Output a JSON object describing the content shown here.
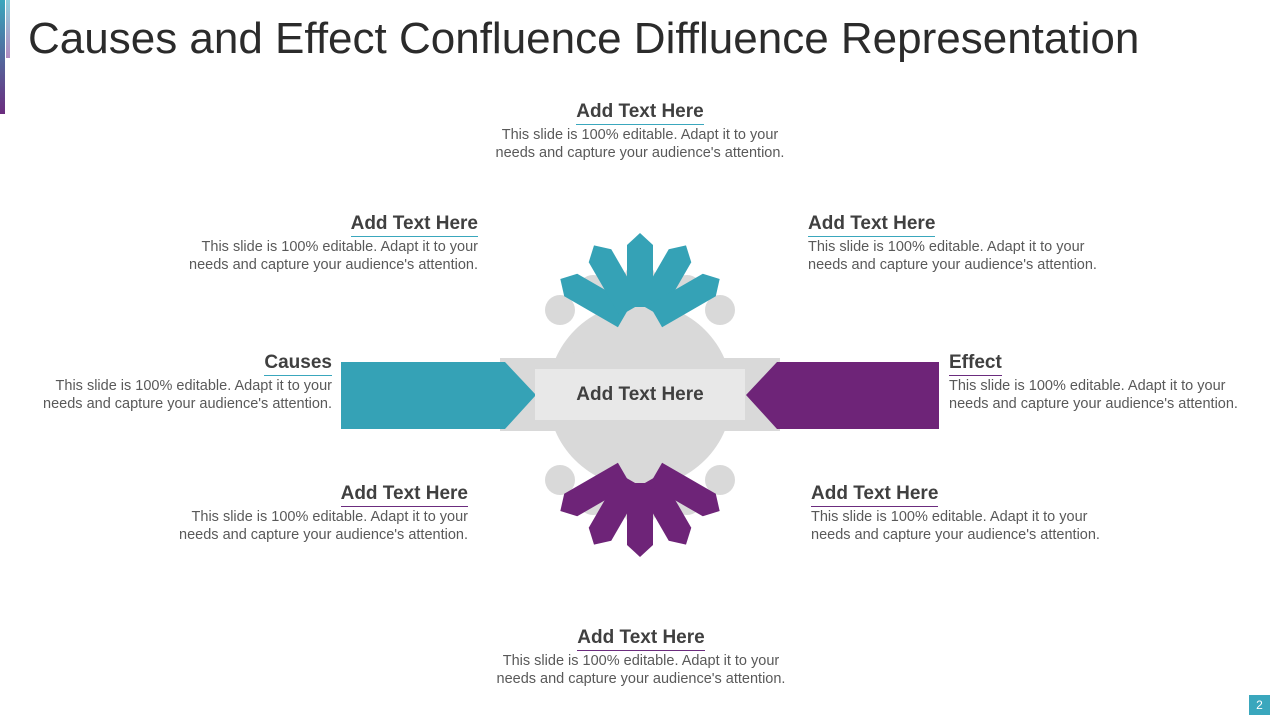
{
  "title": "Causes and Effect Confluence Diffluence Representation",
  "center_label": "Add Text Here",
  "page_number": "2",
  "colors": {
    "teal": "#3aa7bd",
    "purple": "#6b2c7e",
    "hub": "#d9d9d9",
    "center_box": "#e8e8e8"
  },
  "blocks": {
    "top": {
      "heading": "Add Text Here",
      "line1": "This slide is 100% editable. Adapt it to your",
      "line2": "needs and capture your audience's attention."
    },
    "upper_left": {
      "heading": "Add Text Here",
      "line1": "This slide is 100% editable. Adapt it to your",
      "line2": "needs and capture your audience's attention."
    },
    "upper_right": {
      "heading": "Add Text Here",
      "line1": "This slide is 100% editable. Adapt it to your",
      "line2": "needs and capture your audience's attention."
    },
    "causes": {
      "heading": "Causes",
      "line1": "This slide is 100% editable. Adapt it to your",
      "line2": "needs and capture your audience's attention."
    },
    "effect": {
      "heading": "Effect",
      "line1": "This slide is 100% editable. Adapt it to your",
      "line2": "needs and capture your audience's attention."
    },
    "lower_left": {
      "heading": "Add Text Here",
      "line1": "This slide is 100% editable. Adapt it to your",
      "line2": "needs and capture your audience's attention."
    },
    "lower_right": {
      "heading": "Add Text Here",
      "line1": "This slide is 100% editable. Adapt it to your",
      "line2": "needs and capture your audience's attention."
    },
    "bottom": {
      "heading": "Add Text Here",
      "line1": "This slide is 100% editable. Adapt it to your",
      "line2": "needs and capture your audience's attention."
    }
  }
}
